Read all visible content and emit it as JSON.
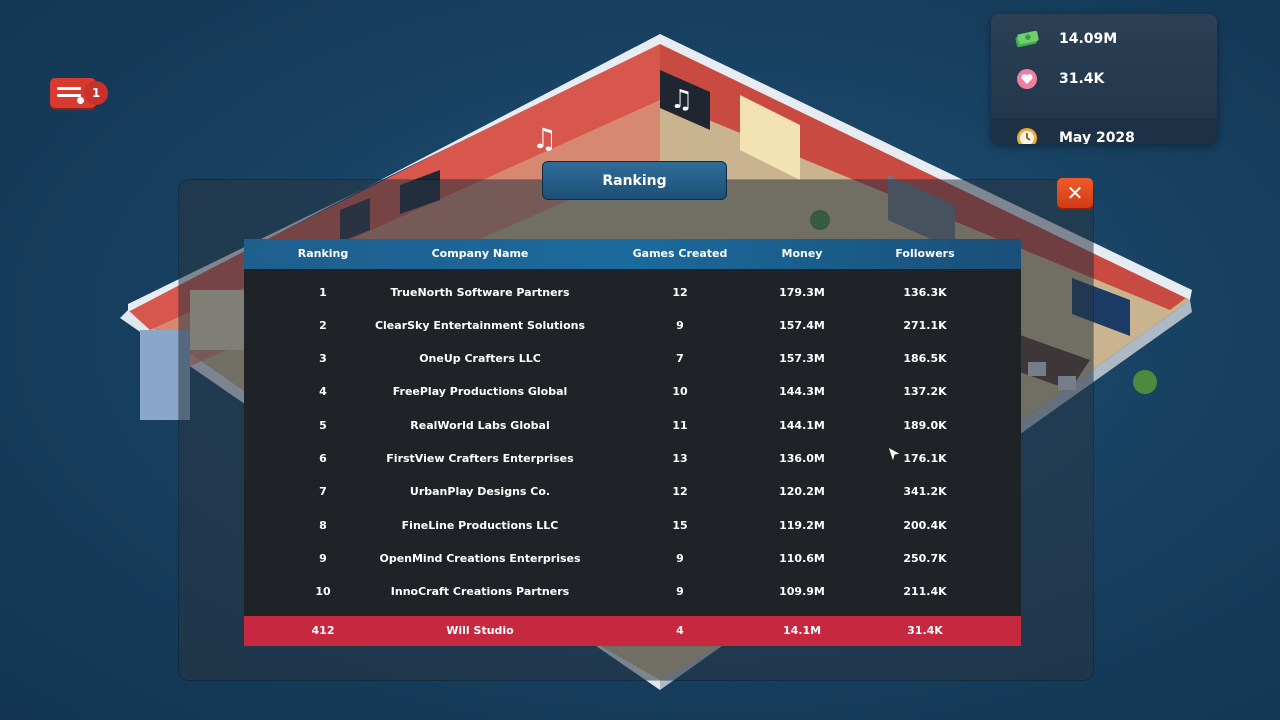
{
  "stats": {
    "money": "14.09M",
    "followers": "31.4K",
    "date": "May 2028"
  },
  "notification": {
    "count": "1"
  },
  "dialog": {
    "title": "Ranking",
    "close_label": "✕"
  },
  "table": {
    "headers": [
      "Ranking",
      "Company Name",
      "Games Created",
      "Money",
      "Followers"
    ],
    "rows": [
      [
        "1",
        "TrueNorth Software Partners",
        "12",
        "179.3M",
        "136.3K"
      ],
      [
        "2",
        "ClearSky Entertainment Solutions",
        "9",
        "157.4M",
        "271.1K"
      ],
      [
        "3",
        "OneUp Crafters LLC",
        "7",
        "157.3M",
        "186.5K"
      ],
      [
        "4",
        "FreePlay Productions Global",
        "10",
        "144.3M",
        "137.2K"
      ],
      [
        "5",
        "RealWorld Labs Global",
        "11",
        "144.1M",
        "189.0K"
      ],
      [
        "6",
        "FirstView Crafters Enterprises",
        "13",
        "136.0M",
        "176.1K"
      ],
      [
        "7",
        "UrbanPlay Designs Co.",
        "12",
        "120.2M",
        "341.2K"
      ],
      [
        "8",
        "FineLine Productions LLC",
        "15",
        "119.2M",
        "200.4K"
      ],
      [
        "9",
        "OpenMind Creations Enterprises",
        "9",
        "110.6M",
        "250.7K"
      ],
      [
        "10",
        "InnoCraft Creations Partners",
        "9",
        "109.9M",
        "211.4K"
      ]
    ],
    "player_row": [
      "412",
      "Will Studio",
      "4",
      "14.1M",
      "31.4K"
    ]
  },
  "colors": {
    "header": "#1b6a9c",
    "player_row": "#c5283f",
    "close": "#e14a1d",
    "table_bg": "#1f2328"
  }
}
